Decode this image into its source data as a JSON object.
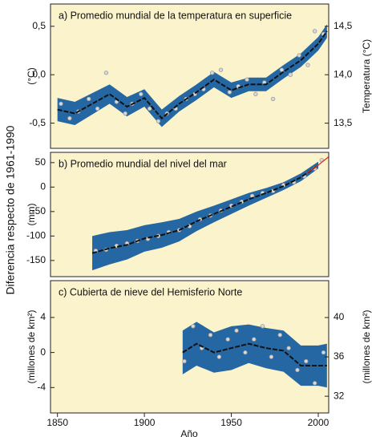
{
  "y_label": "Diferencia respecto de 1961-1990",
  "x_label": "Año",
  "chart_data": [
    {
      "type": "line",
      "title": "a) Promedio mundial de la temperatura en superficie",
      "y_label": "(°C)",
      "y2_label": "Temperatura (°C)",
      "x": [
        1850,
        1860,
        1870,
        1880,
        1890,
        1900,
        1910,
        1920,
        1930,
        1940,
        1950,
        1960,
        1970,
        1980,
        1990,
        2000,
        2005
      ],
      "series": [
        {
          "color": "#111111",
          "values": [
            -0.36,
            -0.4,
            -0.3,
            -0.2,
            -0.33,
            -0.24,
            -0.45,
            -0.3,
            -0.18,
            -0.05,
            -0.16,
            -0.1,
            -0.1,
            0.03,
            0.15,
            0.32,
            0.45
          ]
        }
      ],
      "band": {
        "color": "#2467a3",
        "upper": [
          -0.24,
          -0.28,
          -0.19,
          -0.1,
          -0.23,
          -0.15,
          -0.36,
          -0.22,
          -0.1,
          0.03,
          -0.08,
          -0.03,
          -0.03,
          0.1,
          0.22,
          0.39,
          0.52
        ],
        "lower": [
          -0.48,
          -0.52,
          -0.41,
          -0.3,
          -0.43,
          -0.33,
          -0.54,
          -0.38,
          -0.26,
          -0.13,
          -0.24,
          -0.17,
          -0.17,
          -0.04,
          0.08,
          0.25,
          0.38
        ]
      },
      "points": {
        "color": "#9a9a9a",
        "x": [
          1852,
          1857,
          1862,
          1868,
          1873,
          1878,
          1884,
          1889,
          1893,
          1898,
          1903,
          1908,
          1913,
          1918,
          1924,
          1929,
          1934,
          1939,
          1944,
          1949,
          1954,
          1959,
          1964,
          1969,
          1974,
          1979,
          1984,
          1989,
          1994,
          1998,
          2003
        ],
        "values": [
          -0.3,
          -0.45,
          -0.38,
          -0.25,
          -0.35,
          0.02,
          -0.28,
          -0.4,
          -0.3,
          -0.2,
          -0.35,
          -0.48,
          -0.4,
          -0.35,
          -0.25,
          -0.2,
          -0.15,
          0.02,
          0.05,
          -0.18,
          -0.12,
          -0.05,
          -0.2,
          -0.08,
          -0.25,
          0.05,
          0.0,
          0.2,
          0.1,
          0.45,
          0.42
        ]
      },
      "xlim": [
        1846,
        2006
      ],
      "ylim": [
        -0.76,
        0.73
      ],
      "yticks": [
        {
          "value": 0.5,
          "label": "0,5"
        },
        {
          "value": 0.0,
          "label": "0,0"
        },
        {
          "value": -0.5,
          "label": "-0,5"
        }
      ],
      "y2lim": [
        13.24,
        14.73
      ],
      "y2ticks": [
        {
          "value": 14.5,
          "label": "14,5"
        },
        {
          "value": 14.0,
          "label": "14,0"
        },
        {
          "value": 13.5,
          "label": "13,5"
        }
      ]
    },
    {
      "type": "line",
      "title": "b) Promedio mundial del nivel del mar",
      "y_label": "(mm)",
      "x": [
        1870,
        1880,
        1890,
        1900,
        1910,
        1920,
        1930,
        1940,
        1950,
        1960,
        1970,
        1980,
        1990,
        2000
      ],
      "series": [
        {
          "color": "#111111",
          "values": [
            -135,
            -125,
            -118,
            -105,
            -98,
            -88,
            -70,
            -55,
            -40,
            -25,
            -12,
            2,
            20,
            45
          ]
        },
        {
          "color": "#e03020",
          "x": [
            1993,
            2000,
            2006
          ],
          "values": [
            28,
            45,
            62
          ]
        }
      ],
      "band": {
        "color": "#2467a3",
        "upper": [
          -100,
          -92,
          -88,
          -78,
          -72,
          -65,
          -50,
          -38,
          -25,
          -12,
          -2,
          10,
          28,
          52
        ],
        "lower": [
          -170,
          -158,
          -148,
          -132,
          -124,
          -111,
          -90,
          -72,
          -55,
          -38,
          -22,
          -6,
          12,
          38
        ]
      },
      "points": {
        "color": "#9a9a9a",
        "x": [
          1872,
          1878,
          1884,
          1890,
          1896,
          1902,
          1908,
          1914,
          1920,
          1926,
          1932,
          1938,
          1944,
          1950,
          1956,
          1962,
          1968,
          1974,
          1980,
          1986,
          1992,
          1998,
          2002
        ],
        "values": [
          -130,
          -128,
          -120,
          -115,
          -110,
          -106,
          -100,
          -92,
          -88,
          -80,
          -66,
          -58,
          -48,
          -38,
          -30,
          -18,
          -12,
          -8,
          4,
          10,
          22,
          38,
          55
        ]
      },
      "xlim": [
        1846,
        2006
      ],
      "ylim": [
        -183,
        71
      ],
      "yticks": [
        50,
        0,
        -50,
        -100,
        -150
      ]
    },
    {
      "type": "line",
      "title": "c) Cubierta de nieve del Hemisferio Norte",
      "y_label": "(millones de km²)",
      "y2_label": "(millones de km²)",
      "x": [
        1922,
        1930,
        1940,
        1950,
        1960,
        1970,
        1980,
        1990,
        2000,
        2005
      ],
      "series": [
        {
          "color": "#111111",
          "values": [
            0,
            1,
            0,
            0.5,
            1,
            0.5,
            0.2,
            -1.5,
            -1.5,
            -1.5
          ]
        }
      ],
      "band": {
        "color": "#2467a3",
        "upper": [
          2.5,
          3.5,
          2.3,
          3,
          3.2,
          2.8,
          2.5,
          0.8,
          0.8,
          1
        ],
        "lower": [
          -2.5,
          -1.5,
          -2.3,
          -2,
          -1.2,
          -1.8,
          -2.2,
          -3.8,
          -3.8,
          -4
        ]
      },
      "points": {
        "color": "#9a9a9a",
        "x": [
          1923,
          1928,
          1933,
          1938,
          1943,
          1948,
          1953,
          1958,
          1963,
          1968,
          1973,
          1978,
          1983,
          1988,
          1993,
          1998,
          2003
        ],
        "values": [
          -1,
          3,
          0.5,
          2,
          -0.5,
          1.5,
          2.5,
          0,
          1.5,
          3,
          -0.5,
          2,
          0.5,
          -2,
          -1,
          -3.5,
          0
        ]
      },
      "xlim": [
        1846,
        2006
      ],
      "ylim": [
        -6.9,
        8.2
      ],
      "yticks": [
        4,
        0,
        -4
      ],
      "y2lim": [
        30.3,
        43.75
      ],
      "y2ticks": [
        40,
        36,
        32
      ],
      "xticks": [
        1850,
        1900,
        1950,
        2000
      ]
    }
  ]
}
